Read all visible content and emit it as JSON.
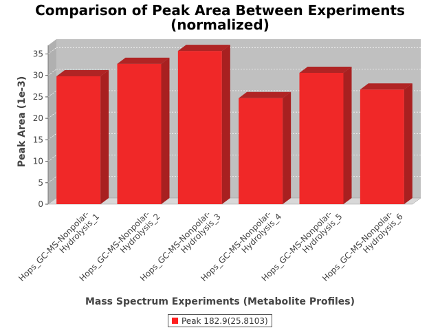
{
  "title_line1": "Comparison of Peak Area Between Experiments",
  "title_line2": "(normalized)",
  "colors": {
    "bar_front": "#f02828",
    "bar_top": "#b02424",
    "bar_side": "#a82020",
    "plot_bg": "#c0c0c0",
    "floor": "#d8d8d8"
  },
  "legend": {
    "label": "Peak 182.9(25.8103)"
  },
  "chart_data": {
    "type": "bar",
    "title": "Comparison of Peak Area Between Experiments (normalized)",
    "xlabel": "Mass Spectrum Experiments (Metabolite Profiles)",
    "ylabel": "Peak Area (1e-3)",
    "ylim": [
      0,
      37
    ],
    "yticks": [
      0,
      5,
      10,
      15,
      20,
      25,
      30,
      35
    ],
    "grid": true,
    "legend_position": "bottom",
    "categories": [
      [
        "Hops_GC-MS-Nonpolar-",
        "Hydrolysis_1"
      ],
      [
        "Hops_GC-MS-Nonpolar-",
        "Hydrolysis_2"
      ],
      [
        "Hops_GC-MS-Nonpolar-",
        "Hydrolysis_3"
      ],
      [
        "Hops_GC-MS-Nonpolar-",
        "Hydrolysis_4"
      ],
      [
        "Hops_GC-MS-Nonpolar-",
        "Hydrolysis_5"
      ],
      [
        "Hops_GC-MS-Nonpolar-",
        "Hydrolysis_6"
      ]
    ],
    "series": [
      {
        "name": "Peak 182.9(25.8103)",
        "values": [
          29.8,
          32.7,
          35.7,
          24.7,
          30.6,
          26.7
        ]
      }
    ]
  }
}
